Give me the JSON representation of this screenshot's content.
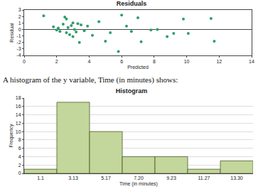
{
  "caption": "A histogram of the y variable, Time (in minutes) shows:",
  "chart_data": [
    {
      "type": "scatter",
      "title": "Residuals",
      "x_label": "Predicted",
      "y_label": "Residual",
      "color": "#2e9e6b",
      "marker": "circle",
      "grid": false,
      "x": [
        1.2,
        1.8,
        2.0,
        2.1,
        2.2,
        2.4,
        2.5,
        2.6,
        2.6,
        2.7,
        2.8,
        2.9,
        3.0,
        3.0,
        3.1,
        3.2,
        3.3,
        3.4,
        3.5,
        3.7,
        3.9,
        4.2,
        4.6,
        5.0,
        5.3,
        5.8,
        6.0,
        6.3,
        6.6,
        7.0,
        7.2,
        7.8,
        8.2,
        8.8,
        9.2,
        9.8,
        10.1,
        11.5,
        11.7
      ],
      "values": [
        2.1,
        0.4,
        -0.1,
        0.2,
        -0.3,
        0.8,
        1.9,
        1.6,
        -0.5,
        0.3,
        -0.8,
        0.6,
        1.0,
        -1.1,
        0.0,
        -0.4,
        0.9,
        -2.0,
        0.7,
        -0.2,
        0.5,
        -0.9,
        1.2,
        -1.8,
        -0.5,
        -3.4,
        2.2,
        0.5,
        -0.3,
        1.8,
        -1.9,
        -0.1,
        0.0,
        -1.1,
        -0.6,
        1.6,
        -0.6,
        1.7,
        -1.8
      ],
      "xlim": [
        0,
        14
      ],
      "xticks": [
        0,
        2,
        4,
        6,
        8,
        10,
        12,
        14
      ],
      "ylim": [
        -4,
        3
      ],
      "yticks": [
        -4,
        -3,
        -2,
        -1,
        0,
        1,
        2,
        3
      ]
    },
    {
      "type": "histogram",
      "title": "Histogram",
      "x_label": "Time (in minutes)",
      "y_label": "Frequency",
      "color": "#c3d69b",
      "grid": true,
      "categories": [
        "1.1",
        "3.13",
        "5.17",
        "7.20",
        "9.23",
        "11.27",
        "13.30"
      ],
      "values": [
        1,
        17,
        10,
        4,
        4,
        1,
        3
      ],
      "ylim": [
        0,
        18
      ],
      "yticks": [
        0,
        2,
        4,
        6,
        8,
        10,
        12,
        14,
        16,
        18
      ]
    }
  ]
}
